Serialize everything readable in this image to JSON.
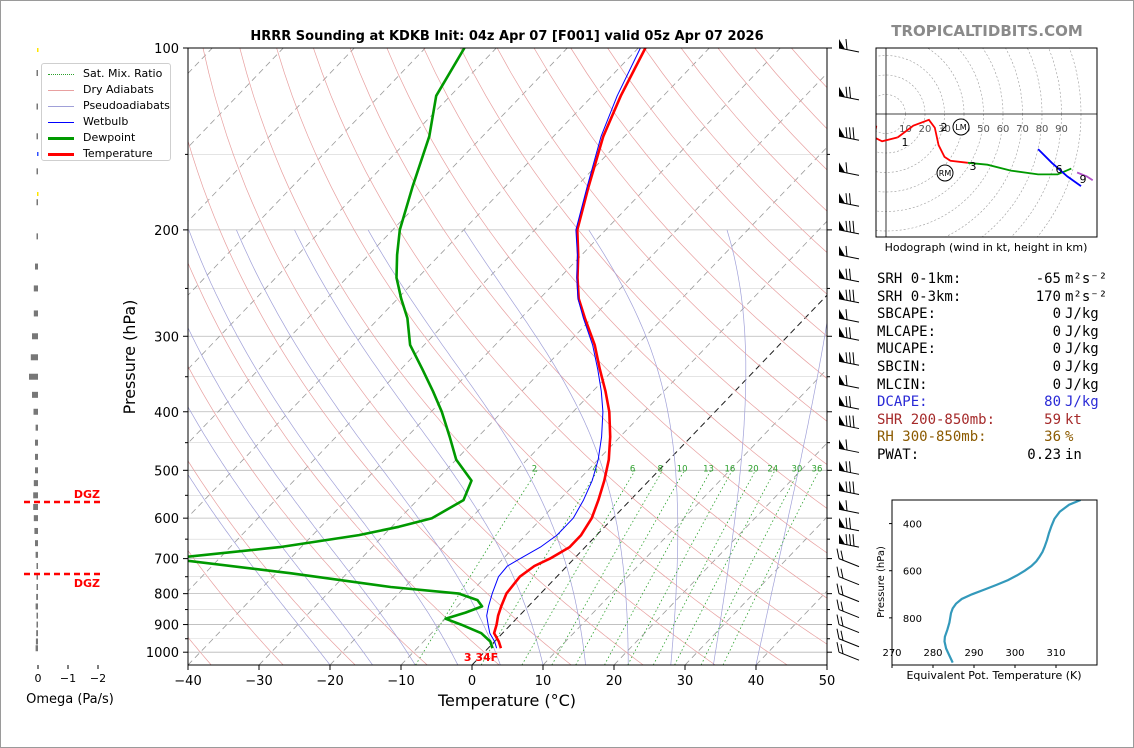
{
  "title": "HRRR Sounding at KDKB Init: 04z Apr 07 [F001] valid 05z Apr 07 2026",
  "brand": "TROPICALTIDBITS.COM",
  "main_axes": {
    "xlabel": "Temperature (°C)",
    "ylabel": "Pressure (hPa)",
    "xlim": [
      -40,
      50
    ],
    "ylim": [
      1050,
      100
    ],
    "x_ticks": [
      -40,
      -30,
      -20,
      -10,
      0,
      10,
      20,
      30,
      40,
      50
    ],
    "y_ticks": [
      100,
      200,
      300,
      400,
      500,
      600,
      700,
      800,
      900,
      1000
    ],
    "sfc_label": "3 34F",
    "mixing_ratio_labels": [
      "2",
      "4",
      "6",
      "8",
      "10",
      "13",
      "16",
      "20",
      "24",
      "30",
      "36"
    ]
  },
  "legend": [
    {
      "label": "Sat. Mix. Ratio",
      "color": "#2ca02c",
      "style": "dotted"
    },
    {
      "label": "Dry Adiabats",
      "color": "#d62728",
      "style": "thin"
    },
    {
      "label": "Pseudoadiabats",
      "color": "#1f1fb4",
      "style": "thin"
    },
    {
      "label": "Wetbulb",
      "color": "#0000ff",
      "style": "solid"
    },
    {
      "label": "Dewpoint",
      "color": "#009900",
      "style": "thick"
    },
    {
      "label": "Temperature",
      "color": "#ff0000",
      "style": "thick"
    }
  ],
  "omega": {
    "xlabel": "Omega (Pa/s)",
    "x_ticks": [
      "0",
      "−1",
      "−2"
    ],
    "dgz_label": "DGZ",
    "dgz_pressures": [
      570,
      740
    ]
  },
  "hodograph": {
    "caption": "Hodograph (wind in kt, height in km)",
    "ring_labels": [
      "10",
      "20",
      "30",
      "40",
      "50",
      "60",
      "70",
      "80",
      "90"
    ],
    "height_labels": [
      "1",
      "2",
      "3",
      "6",
      "9"
    ],
    "storm_motion_labels": [
      "LM",
      "RM"
    ]
  },
  "theta_e": {
    "xlabel": "Equivalent Pot. Temperature (K)",
    "ylabel": "Pressure (hPa)",
    "x_ticks": [
      270,
      280,
      290,
      300,
      310
    ],
    "y_ticks": [
      400,
      600,
      800
    ]
  },
  "stats": [
    {
      "key": "SRH 0-1km:",
      "value": "-65",
      "unit": "m²s⁻²",
      "color": "#000000"
    },
    {
      "key": "SRH 0-3km:",
      "value": "170",
      "unit": "m²s⁻²",
      "color": "#000000"
    },
    {
      "key": "SBCAPE:",
      "value": "0",
      "unit": "J/kg",
      "color": "#000000"
    },
    {
      "key": "MLCAPE:",
      "value": "0",
      "unit": "J/kg",
      "color": "#000000"
    },
    {
      "key": "MUCAPE:",
      "value": "0",
      "unit": "J/kg",
      "color": "#000000"
    },
    {
      "key": "SBCIN:",
      "value": "0",
      "unit": "J/kg",
      "color": "#000000"
    },
    {
      "key": "MLCIN:",
      "value": "0",
      "unit": "J/kg",
      "color": "#000000"
    },
    {
      "key": "DCAPE:",
      "value": "80",
      "unit": "J/kg",
      "color": "#2a2ad6"
    },
    {
      "key": "SHR 200-850mb:",
      "value": "59",
      "unit": "kt",
      "color": "#a52a2a"
    },
    {
      "key": "RH 300-850mb:",
      "value": "36",
      "unit": "%",
      "color": "#8b5a00"
    },
    {
      "key": "PWAT:",
      "value": "0.23",
      "unit": "in",
      "color": "#000000"
    }
  ],
  "chart_data": [
    {
      "type": "line",
      "title": "HRRR Sounding at KDKB Init: 04z Apr 07 [F001] valid 05z Apr 07 2026",
      "xlabel": "Temperature (°C)",
      "ylabel": "Pressure (hPa)",
      "x_scale": "skew-T",
      "y_scale": "log",
      "xlim": [
        -40,
        50
      ],
      "ylim": [
        1050,
        100
      ],
      "grid": true,
      "legend_position": "top-left",
      "series": [
        {
          "name": "Temperature",
          "pressure": [
            985,
            960,
            930,
            900,
            870,
            840,
            800,
            750,
            720,
            700,
            670,
            640,
            600,
            560,
            520,
            480,
            440,
            400,
            370,
            340,
            310,
            280,
            260,
            240,
            220,
            200,
            170,
            140,
            120,
            100
          ],
          "values": [
            1.8,
            0.6,
            -1.2,
            -2.0,
            -3.0,
            -3.8,
            -4.8,
            -5.2,
            -4.6,
            -3.4,
            -2.2,
            -2.2,
            -3.0,
            -4.5,
            -6.3,
            -8.5,
            -11.4,
            -14.9,
            -18.2,
            -22.0,
            -26.0,
            -31.0,
            -34.5,
            -37.5,
            -40.5,
            -44.0,
            -48.2,
            -53.0,
            -56.0,
            -59.0
          ]
        },
        {
          "name": "Wetbulb",
          "pressure": [
            985,
            960,
            930,
            900,
            870,
            840,
            800,
            750,
            720,
            700,
            670,
            640,
            600,
            560,
            520,
            480,
            440,
            400,
            370,
            340,
            310,
            280,
            260,
            240,
            220,
            200,
            170,
            140,
            120,
            100
          ],
          "values": [
            1.2,
            0.0,
            -1.8,
            -3.2,
            -4.6,
            -5.6,
            -6.8,
            -8.2,
            -8.4,
            -7.6,
            -6.3,
            -5.6,
            -5.6,
            -6.6,
            -8.0,
            -10.0,
            -12.6,
            -15.8,
            -18.8,
            -22.3,
            -26.3,
            -31.2,
            -34.6,
            -37.6,
            -40.6,
            -44.2,
            -48.4,
            -53.3,
            -56.5,
            -59.7
          ]
        },
        {
          "name": "Dewpoint",
          "pressure": [
            985,
            960,
            930,
            900,
            880,
            860,
            840,
            820,
            800,
            780,
            740,
            700,
            670,
            640,
            620,
            600,
            560,
            520,
            480,
            440,
            400,
            370,
            340,
            310,
            280,
            260,
            240,
            220,
            200,
            170,
            140,
            120,
            100
          ],
          "values": [
            0.6,
            -0.6,
            -3.0,
            -7.0,
            -10.0,
            -8.0,
            -6.5,
            -8.0,
            -11.5,
            -22.0,
            -38.0,
            -57.0,
            -43.0,
            -33.5,
            -29.0,
            -25.5,
            -23.5,
            -25.0,
            -30.0,
            -34.0,
            -38.5,
            -42.5,
            -47.0,
            -52.0,
            -56.0,
            -59.5,
            -63.0,
            -66.0,
            -69.0,
            -73.0,
            -77.5,
            -82.0,
            -84.5
          ]
        }
      ]
    },
    {
      "type": "bar",
      "title": "",
      "xlabel": "Omega (Pa/s)",
      "orientation": "horizontal",
      "xlim": [
        0.3,
        -2.2
      ],
      "pressure": [
        985,
        960,
        930,
        900,
        870,
        840,
        810,
        780,
        750,
        720,
        690,
        660,
        630,
        600,
        575,
        550,
        525,
        500,
        475,
        450,
        425,
        400,
        375,
        350,
        325,
        300,
        275,
        250,
        230,
        205,
        180,
        160,
        140,
        125,
        110
      ],
      "values": [
        -0.08,
        -0.07,
        -0.06,
        -0.05,
        -0.05,
        -0.08,
        -0.06,
        -0.03,
        -0.04,
        -0.04,
        -0.08,
        -0.1,
        -0.12,
        -0.14,
        -0.16,
        -0.16,
        -0.14,
        -0.1,
        -0.1,
        -0.1,
        -0.08,
        -0.15,
        -0.2,
        -0.3,
        -0.24,
        -0.2,
        -0.14,
        -0.14,
        -0.1,
        -0.05,
        -0.05,
        -0.02,
        -0.02,
        -0.02,
        -0.01
      ]
    },
    {
      "type": "line",
      "title": "Hodograph",
      "xlabel": "",
      "ylabel": "",
      "series": [
        {
          "name": "0-1 km",
          "u": [
            -5,
            -6,
            -2,
            6
          ],
          "v": [
            -6,
            -12,
            -14,
            -12
          ]
        },
        {
          "name": "1-3 km",
          "u": [
            6,
            14,
            22,
            25,
            27,
            30,
            33,
            42
          ],
          "v": [
            -12,
            -6,
            -3,
            -7,
            -16,
            -22,
            -24,
            -25
          ]
        },
        {
          "name": "3-6 km",
          "u": [
            42,
            52,
            64,
            78,
            88,
            95
          ],
          "v": [
            -25,
            -26,
            -29,
            -31,
            -31,
            -28
          ]
        },
        {
          "name": "6-9 km",
          "u": [
            78,
            85,
            93,
            100
          ],
          "v": [
            -18,
            -25,
            -32,
            -37
          ]
        },
        {
          "name": "9+ km",
          "u": [
            98,
            103,
            106
          ],
          "v": [
            -30,
            -32,
            -34
          ]
        }
      ]
    },
    {
      "type": "line",
      "title": "",
      "xlabel": "Equivalent Pot. Temperature (K)",
      "ylabel": "Pressure (hPa)",
      "xlim": [
        270,
        320
      ],
      "ylim": [
        1000,
        300
      ],
      "series": [
        {
          "name": "",
          "pressure": [
            990,
            960,
            930,
            900,
            880,
            850,
            820,
            800,
            780,
            760,
            740,
            720,
            700,
            680,
            660,
            640,
            620,
            600,
            580,
            560,
            540,
            520,
            500,
            470,
            440,
            410,
            380,
            350,
            320,
            300
          ],
          "values": [
            284.8,
            284.0,
            283.2,
            282.8,
            282.9,
            283.5,
            284.0,
            284.2,
            284.4,
            284.8,
            285.6,
            287.0,
            289.5,
            292.5,
            295.5,
            298.3,
            300.5,
            302.4,
            304.0,
            305.2,
            306.0,
            306.7,
            307.2,
            307.8,
            308.3,
            308.9,
            309.6,
            310.9,
            313.2,
            316.0
          ]
        }
      ]
    }
  ]
}
